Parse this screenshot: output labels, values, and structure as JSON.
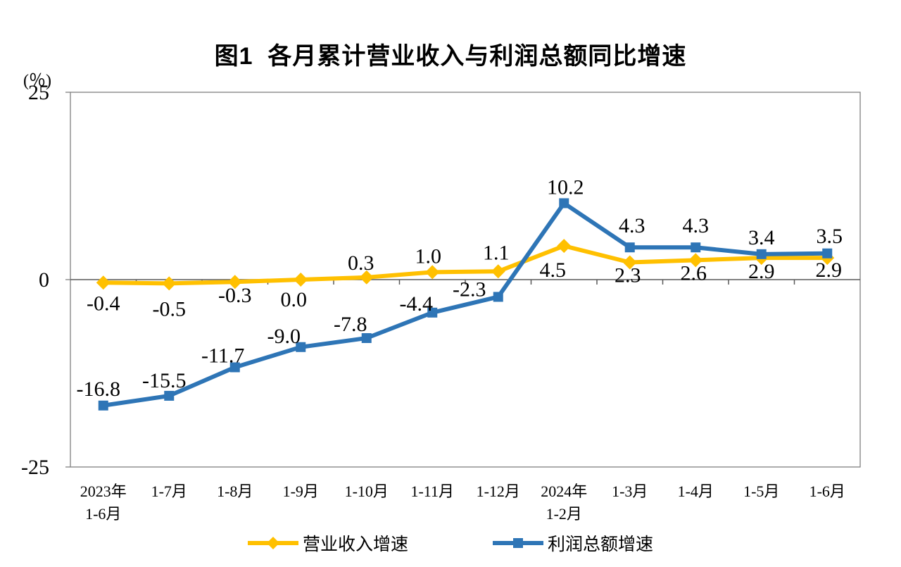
{
  "title": "图1  各月累计营业收入与利润总额同比增速",
  "y_axis_unit": "(％)",
  "chart_data": {
    "type": "line",
    "title": "图1  各月累计营业收入与利润总额同比增速",
    "ylabel": "(％)",
    "ylim": [
      -25,
      25
    ],
    "yticks": [
      "25",
      "0",
      "-25"
    ],
    "ytick_values": [
      25,
      0,
      -25
    ],
    "grid": false,
    "legend_position": "bottom",
    "axis_color": "#808080",
    "zero_line_color": "#595959",
    "text_color": "#000000",
    "categories": [
      [
        "2023年",
        "1-6月"
      ],
      [
        "1-7月"
      ],
      [
        "1-8月"
      ],
      [
        "1-9月"
      ],
      [
        "1-10月"
      ],
      [
        "1-11月"
      ],
      [
        "1-12月"
      ],
      [
        "2024年",
        "1-2月"
      ],
      [
        "1-3月"
      ],
      [
        "1-4月"
      ],
      [
        "1-5月"
      ],
      [
        "1-6月"
      ]
    ],
    "series": [
      {
        "id": "revenue-growth",
        "name": "营业收入增速",
        "color": "#FFC000",
        "marker": "diamond",
        "values": [
          -0.4,
          -0.5,
          -0.3,
          0.0,
          0.3,
          1.0,
          1.1,
          4.5,
          2.3,
          2.6,
          2.9,
          2.9
        ],
        "labels": [
          "-0.4",
          "-0.5",
          "-0.3",
          "0.0",
          "0.3",
          "1.0",
          "1.1",
          "4.5",
          "2.3",
          "2.6",
          "2.9",
          "2.9"
        ]
      },
      {
        "id": "profit-growth",
        "name": "利润总额增速",
        "color": "#2E75B6",
        "marker": "square",
        "values": [
          -16.8,
          -15.5,
          -11.7,
          -9.0,
          -7.8,
          -4.4,
          -2.3,
          10.2,
          4.3,
          4.3,
          3.4,
          3.5
        ],
        "labels": [
          "-16.8",
          "-15.5",
          "-11.7",
          "-9.0",
          "-7.8",
          "-4.4",
          "-2.3",
          "10.2",
          "4.3",
          "4.3",
          "3.4",
          "3.5"
        ]
      }
    ]
  },
  "legend": {
    "items": [
      {
        "label": "营业收入增速"
      },
      {
        "label": "利润总额增速"
      }
    ]
  }
}
